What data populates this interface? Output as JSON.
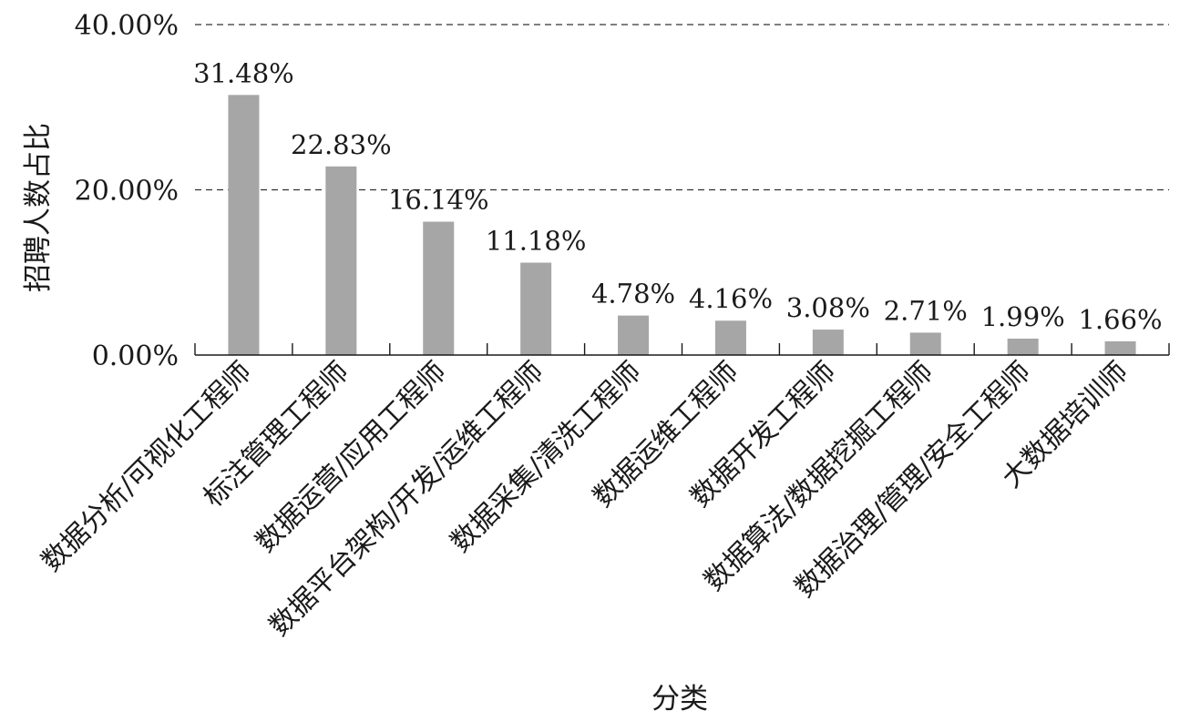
{
  "chart_data": {
    "type": "bar",
    "ylabel": "招聘人数占比",
    "xlabel": "分类",
    "ylim": [
      0,
      40
    ],
    "yticks": [
      "0.00%",
      "20.00%",
      "40.00%"
    ],
    "grid": "dashed horizontal at 20.00% and 40.00%",
    "categories": [
      "数据分析/可视化工程师",
      "标注管理工程师",
      "数据运营/应用工程师",
      "数据平台架构/开发/运维工程师",
      "数据采集/清洗工程师",
      "数据运维工程师",
      "数据开发工程师",
      "数据算法/数据挖掘工程师",
      "数据治理/管理/安全工程师",
      "大数据培训师"
    ],
    "values": [
      31.48,
      22.83,
      16.14,
      11.18,
      4.78,
      4.16,
      3.08,
      2.71,
      1.99,
      1.66
    ],
    "value_labels": [
      "31.48%",
      "22.83%",
      "16.14%",
      "11.18%",
      "4.78%",
      "4.16%",
      "3.08%",
      "2.71%",
      "1.99%",
      "1.66%"
    ],
    "bar_color": "#a6a6a6"
  }
}
